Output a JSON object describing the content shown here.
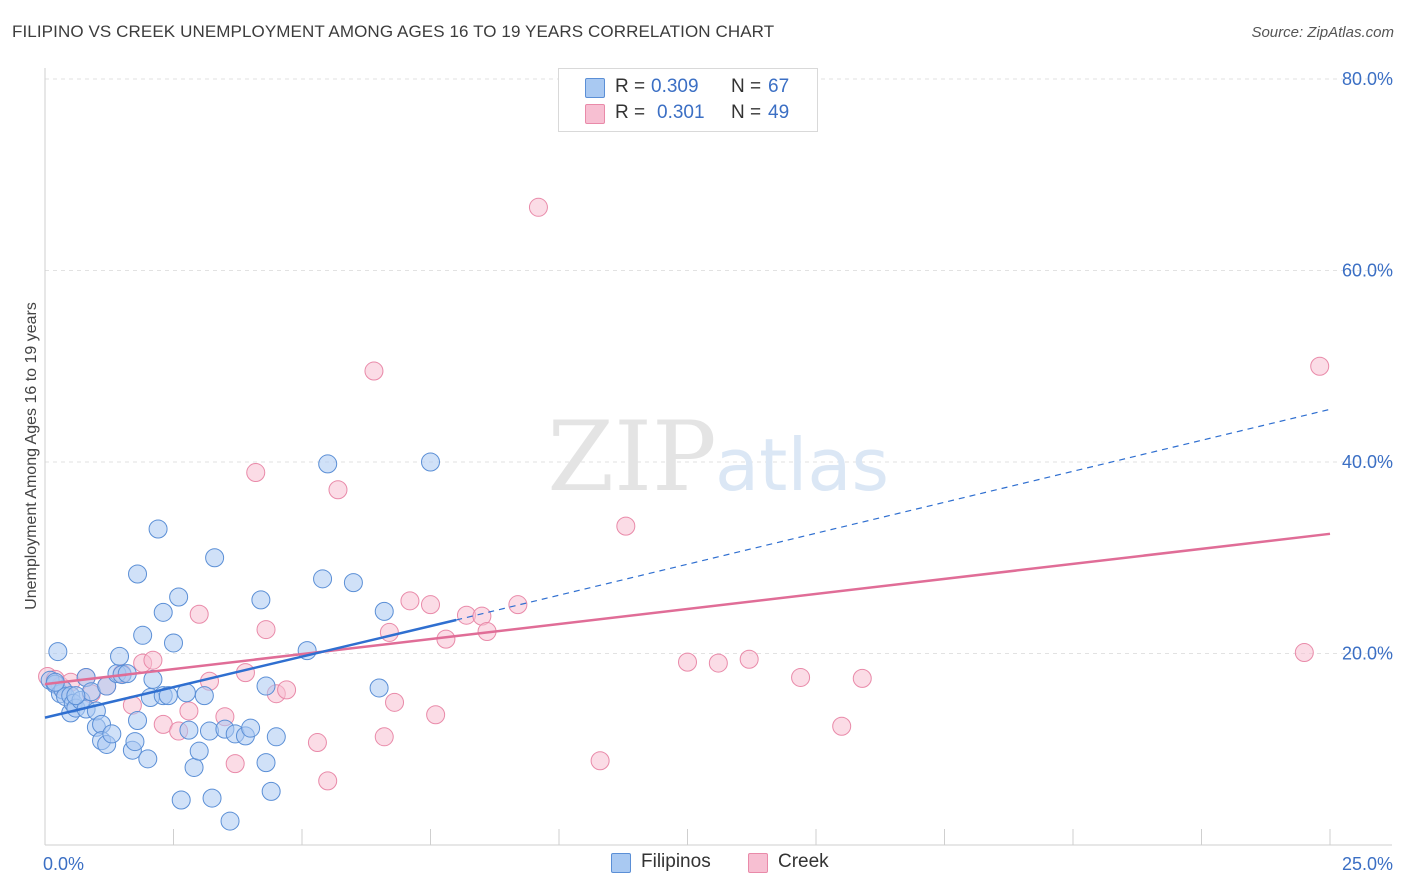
{
  "title": "FILIPINO VS CREEK UNEMPLOYMENT AMONG AGES 16 TO 19 YEARS CORRELATION CHART",
  "source": "Source: ZipAtlas.com",
  "watermark": {
    "zip": "ZIP",
    "atlas": "atlas"
  },
  "legend": {
    "rows": [
      {
        "r_label": "R =",
        "r_value": "0.309",
        "n_label": "N =",
        "n_value": "67"
      },
      {
        "r_label": "R =",
        "r_value": "0.301",
        "n_label": "N =",
        "n_value": "49"
      }
    ]
  },
  "colors": {
    "filipinos_fill": "#a9c9f2",
    "filipinos_stroke": "#5b8fd6",
    "filipinos_line": "#2f6fd0",
    "creek_fill": "#f7bfd2",
    "creek_stroke": "#e98aa9",
    "creek_line": "#e06d97",
    "axis_tick_text": "#3b6fc4",
    "grid": "#e2e2e2"
  },
  "chart_data": {
    "type": "scatter",
    "title": "FILIPINO VS CREEK UNEMPLOYMENT AMONG AGES 16 TO 19 YEARS CORRELATION CHART",
    "xlabel": "",
    "ylabel": "Unemployment Among Ages 16 to 19 years",
    "xlim": [
      0,
      25
    ],
    "ylim": [
      0,
      80
    ],
    "x_tick_labels": [
      {
        "value": 0,
        "label": "0.0%"
      },
      {
        "value": 25,
        "label": "25.0%"
      }
    ],
    "y_tick_labels": [
      {
        "value": 20,
        "label": "20.0%"
      },
      {
        "value": 40,
        "label": "40.0%"
      },
      {
        "value": 60,
        "label": "60.0%"
      },
      {
        "value": 80,
        "label": "80.0%"
      }
    ],
    "legend_position": "top-center",
    "series": [
      {
        "name": "Filipinos",
        "r": 0.309,
        "n": 67,
        "trend": {
          "x0": 0,
          "y0": 13.3,
          "x1": 8.0,
          "y1": 23.5,
          "dashed_to_x": 25,
          "dashed_to_y": 45.5
        },
        "points": [
          [
            0.1,
            17.2
          ],
          [
            0.2,
            16.8
          ],
          [
            0.25,
            20.2
          ],
          [
            0.3,
            15.8
          ],
          [
            0.35,
            16.2
          ],
          [
            0.4,
            15.5
          ],
          [
            0.5,
            15.6
          ],
          [
            0.5,
            13.8
          ],
          [
            0.55,
            14.8
          ],
          [
            0.6,
            14.3
          ],
          [
            0.7,
            15.1
          ],
          [
            0.8,
            14.2
          ],
          [
            0.8,
            17.5
          ],
          [
            0.9,
            16.0
          ],
          [
            1.0,
            12.3
          ],
          [
            1.0,
            14.0
          ],
          [
            1.1,
            12.6
          ],
          [
            1.1,
            10.9
          ],
          [
            1.2,
            10.5
          ],
          [
            1.2,
            16.6
          ],
          [
            1.3,
            11.6
          ],
          [
            1.4,
            17.9
          ],
          [
            1.45,
            19.7
          ],
          [
            1.5,
            17.8
          ],
          [
            1.6,
            17.9
          ],
          [
            1.7,
            9.9
          ],
          [
            1.75,
            10.8
          ],
          [
            1.8,
            28.3
          ],
          [
            1.8,
            13.0
          ],
          [
            1.9,
            21.9
          ],
          [
            2.0,
            9.0
          ],
          [
            2.05,
            15.4
          ],
          [
            2.1,
            17.3
          ],
          [
            2.2,
            33.0
          ],
          [
            2.3,
            15.6
          ],
          [
            2.3,
            24.3
          ],
          [
            2.4,
            15.6
          ],
          [
            2.5,
            21.1
          ],
          [
            2.6,
            25.9
          ],
          [
            2.65,
            4.7
          ],
          [
            2.75,
            15.9
          ],
          [
            2.8,
            12.0
          ],
          [
            2.9,
            8.1
          ],
          [
            3.0,
            9.8
          ],
          [
            3.1,
            15.6
          ],
          [
            3.2,
            11.9
          ],
          [
            3.25,
            4.9
          ],
          [
            3.3,
            30.0
          ],
          [
            3.5,
            12.1
          ],
          [
            3.6,
            2.5
          ],
          [
            3.7,
            11.6
          ],
          [
            3.9,
            11.4
          ],
          [
            4.0,
            12.2
          ],
          [
            4.2,
            25.6
          ],
          [
            4.3,
            8.6
          ],
          [
            4.3,
            16.6
          ],
          [
            4.4,
            5.6
          ],
          [
            4.5,
            11.3
          ],
          [
            5.1,
            20.3
          ],
          [
            5.4,
            27.8
          ],
          [
            5.5,
            39.8
          ],
          [
            6.0,
            27.4
          ],
          [
            6.5,
            16.4
          ],
          [
            6.6,
            24.4
          ],
          [
            7.5,
            40.0
          ],
          [
            0.2,
            17.0
          ],
          [
            0.6,
            15.6
          ]
        ]
      },
      {
        "name": "Creek",
        "r": 0.301,
        "n": 49,
        "trend": {
          "x0": 0,
          "y0": 16.8,
          "x1": 25,
          "y1": 32.5
        },
        "points": [
          [
            0.05,
            17.6
          ],
          [
            0.2,
            17.3
          ],
          [
            0.3,
            16.6
          ],
          [
            0.5,
            17.0
          ],
          [
            0.8,
            17.5
          ],
          [
            0.9,
            15.8
          ],
          [
            1.2,
            16.6
          ],
          [
            1.5,
            17.9
          ],
          [
            1.7,
            14.6
          ],
          [
            1.9,
            19.0
          ],
          [
            2.1,
            19.3
          ],
          [
            2.3,
            12.6
          ],
          [
            2.6,
            11.9
          ],
          [
            2.8,
            14.0
          ],
          [
            3.0,
            24.1
          ],
          [
            3.2,
            17.1
          ],
          [
            3.5,
            13.4
          ],
          [
            3.7,
            8.5
          ],
          [
            3.9,
            18.0
          ],
          [
            4.1,
            38.9
          ],
          [
            4.3,
            22.5
          ],
          [
            4.5,
            15.8
          ],
          [
            4.7,
            16.2
          ],
          [
            5.3,
            10.7
          ],
          [
            5.5,
            6.7
          ],
          [
            5.7,
            37.1
          ],
          [
            6.4,
            49.5
          ],
          [
            6.6,
            11.3
          ],
          [
            6.7,
            22.2
          ],
          [
            6.8,
            14.9
          ],
          [
            7.1,
            25.5
          ],
          [
            7.5,
            25.1
          ],
          [
            7.6,
            13.6
          ],
          [
            7.8,
            21.5
          ],
          [
            8.2,
            24.0
          ],
          [
            8.5,
            23.9
          ],
          [
            8.6,
            22.3
          ],
          [
            9.2,
            25.1
          ],
          [
            9.6,
            66.6
          ],
          [
            10.8,
            8.8
          ],
          [
            11.3,
            33.3
          ],
          [
            12.5,
            19.1
          ],
          [
            13.1,
            19.0
          ],
          [
            13.7,
            19.4
          ],
          [
            14.7,
            17.5
          ],
          [
            15.5,
            12.4
          ],
          [
            15.9,
            17.4
          ],
          [
            24.5,
            20.1
          ],
          [
            24.8,
            50.0
          ]
        ]
      }
    ]
  },
  "bottom_legend": [
    {
      "label": "Filipinos"
    },
    {
      "label": "Creek"
    }
  ]
}
